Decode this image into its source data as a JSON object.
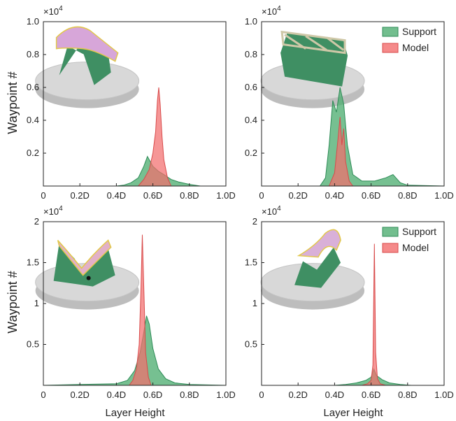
{
  "figure": {
    "y_axis_label": "Waypoint #",
    "x_axis_label": "Layer Height"
  },
  "colors": {
    "support_fill": "#4fae72",
    "support_line": "#2e8b57",
    "model_fill": "#f26d6d",
    "model_line": "#d84b4b",
    "axis": "#222222",
    "platform": "#d8d8d8"
  },
  "chart_data": [
    {
      "type": "area",
      "id": "top-left",
      "multiplier": "×10",
      "multiplier_exp": "4",
      "xlim": [
        0,
        1.0
      ],
      "ylim": [
        0,
        1.0
      ],
      "x_ticks": [
        "0",
        "0.2D",
        "0.4D",
        "0.6D",
        "0.8D",
        "1.0D"
      ],
      "x_tick_values": [
        0,
        0.2,
        0.4,
        0.6,
        0.8,
        1.0
      ],
      "y_ticks": [
        "0.2",
        "0.4",
        "0.6",
        "0.8",
        "1.0"
      ],
      "y_tick_values": [
        0.2,
        0.4,
        0.6,
        0.8,
        1.0
      ],
      "legend": null,
      "inset": "model-1",
      "series": [
        {
          "name": "Support",
          "points": [
            [
              0.4,
              0
            ],
            [
              0.44,
              0.005
            ],
            [
              0.48,
              0.02
            ],
            [
              0.52,
              0.05
            ],
            [
              0.55,
              0.12
            ],
            [
              0.57,
              0.18
            ],
            [
              0.585,
              0.15
            ],
            [
              0.6,
              0.12
            ],
            [
              0.63,
              0.09
            ],
            [
              0.66,
              0.07
            ],
            [
              0.7,
              0.04
            ],
            [
              0.74,
              0.025
            ],
            [
              0.8,
              0.01
            ],
            [
              0.86,
              0
            ]
          ]
        },
        {
          "name": "Model",
          "points": [
            [
              0.52,
              0
            ],
            [
              0.55,
              0.04
            ],
            [
              0.58,
              0.1
            ],
            [
              0.6,
              0.2
            ],
            [
              0.615,
              0.33
            ],
            [
              0.625,
              0.52
            ],
            [
              0.632,
              0.6
            ],
            [
              0.64,
              0.5
            ],
            [
              0.65,
              0.3
            ],
            [
              0.66,
              0.16
            ],
            [
              0.68,
              0.05
            ],
            [
              0.7,
              0
            ]
          ]
        }
      ]
    },
    {
      "type": "area",
      "id": "top-right",
      "multiplier": "×10",
      "multiplier_exp": "4",
      "xlim": [
        0,
        1.0
      ],
      "ylim": [
        0,
        1.0
      ],
      "x_ticks": [
        "0",
        "0.2D",
        "0.4D",
        "0.6D",
        "0.8D",
        "1.0D"
      ],
      "x_tick_values": [
        0,
        0.2,
        0.4,
        0.6,
        0.8,
        1.0
      ],
      "y_ticks": [
        "0.2",
        "0.4",
        "0.6",
        "0.8",
        "1.0"
      ],
      "y_tick_values": [
        0.2,
        0.4,
        0.6,
        0.8,
        1.0
      ],
      "legend": [
        "Support",
        "Model"
      ],
      "inset": "model-2",
      "series": [
        {
          "name": "Support",
          "points": [
            [
              0.32,
              0
            ],
            [
              0.35,
              0.05
            ],
            [
              0.37,
              0.25
            ],
            [
              0.39,
              0.52
            ],
            [
              0.41,
              0.45
            ],
            [
              0.43,
              0.6
            ],
            [
              0.45,
              0.5
            ],
            [
              0.47,
              0.25
            ],
            [
              0.5,
              0.07
            ],
            [
              0.55,
              0.03
            ],
            [
              0.62,
              0.03
            ],
            [
              0.68,
              0.05
            ],
            [
              0.72,
              0.07
            ],
            [
              0.76,
              0.02
            ],
            [
              0.8,
              0.005
            ],
            [
              1.0,
              0
            ]
          ]
        },
        {
          "name": "Model",
          "points": [
            [
              0.37,
              0
            ],
            [
              0.4,
              0.08
            ],
            [
              0.42,
              0.3
            ],
            [
              0.43,
              0.42
            ],
            [
              0.44,
              0.25
            ],
            [
              0.45,
              0.35
            ],
            [
              0.46,
              0.15
            ],
            [
              0.48,
              0.03
            ],
            [
              0.5,
              0
            ]
          ]
        }
      ]
    },
    {
      "type": "area",
      "id": "bottom-left",
      "multiplier": "×10",
      "multiplier_exp": "4",
      "xlim": [
        0,
        1.0
      ],
      "ylim": [
        0,
        2.0
      ],
      "x_ticks": [
        "0",
        "0.2D",
        "0.4D",
        "0.6D",
        "0.8D",
        "1.0D"
      ],
      "x_tick_values": [
        0,
        0.2,
        0.4,
        0.6,
        0.8,
        1.0
      ],
      "y_ticks": [
        "0.5",
        "1",
        "1.5",
        "2"
      ],
      "y_tick_values": [
        0.5,
        1.0,
        1.5,
        2.0
      ],
      "legend": null,
      "inset": "model-3",
      "series": [
        {
          "name": "Support",
          "points": [
            [
              0.0,
              0
            ],
            [
              0.2,
              0.01
            ],
            [
              0.4,
              0.02
            ],
            [
              0.46,
              0.06
            ],
            [
              0.5,
              0.18
            ],
            [
              0.53,
              0.4
            ],
            [
              0.55,
              0.65
            ],
            [
              0.565,
              0.85
            ],
            [
              0.58,
              0.75
            ],
            [
              0.6,
              0.45
            ],
            [
              0.63,
              0.2
            ],
            [
              0.67,
              0.08
            ],
            [
              0.72,
              0.03
            ],
            [
              0.8,
              0.01
            ],
            [
              1.0,
              0
            ]
          ]
        },
        {
          "name": "Model",
          "points": [
            [
              0.47,
              0
            ],
            [
              0.49,
              0.06
            ],
            [
              0.51,
              0.2
            ],
            [
              0.525,
              0.5
            ],
            [
              0.535,
              1.2
            ],
            [
              0.542,
              1.84
            ],
            [
              0.55,
              1.2
            ],
            [
              0.56,
              0.4
            ],
            [
              0.575,
              0.1
            ],
            [
              0.59,
              0
            ]
          ]
        }
      ]
    },
    {
      "type": "area",
      "id": "bottom-right",
      "multiplier": "×10",
      "multiplier_exp": "4",
      "xlim": [
        0,
        1.0
      ],
      "ylim": [
        0,
        2.0
      ],
      "x_ticks": [
        "0",
        "0.2D",
        "0.4D",
        "0.6D",
        "0.8D",
        "1.0D"
      ],
      "x_tick_values": [
        0,
        0.2,
        0.4,
        0.6,
        0.8,
        1.0
      ],
      "y_ticks": [
        "0.5",
        "1",
        "1.5",
        "2"
      ],
      "y_tick_values": [
        0.5,
        1.0,
        1.5,
        2.0
      ],
      "legend": [
        "Support",
        "Model"
      ],
      "inset": "model-4",
      "series": [
        {
          "name": "Support",
          "points": [
            [
              0.4,
              0
            ],
            [
              0.46,
              0.01
            ],
            [
              0.52,
              0.03
            ],
            [
              0.57,
              0.06
            ],
            [
              0.6,
              0.1
            ],
            [
              0.615,
              0.2
            ],
            [
              0.63,
              0.12
            ],
            [
              0.66,
              0.07
            ],
            [
              0.7,
              0.03
            ],
            [
              0.76,
              0.01
            ],
            [
              0.82,
              0
            ]
          ]
        },
        {
          "name": "Model",
          "points": [
            [
              0.55,
              0
            ],
            [
              0.58,
              0.02
            ],
            [
              0.6,
              0.06
            ],
            [
              0.61,
              0.25
            ],
            [
              0.618,
              1.73
            ],
            [
              0.625,
              0.4
            ],
            [
              0.635,
              0.08
            ],
            [
              0.65,
              0.02
            ],
            [
              0.68,
              0
            ]
          ]
        }
      ]
    }
  ]
}
